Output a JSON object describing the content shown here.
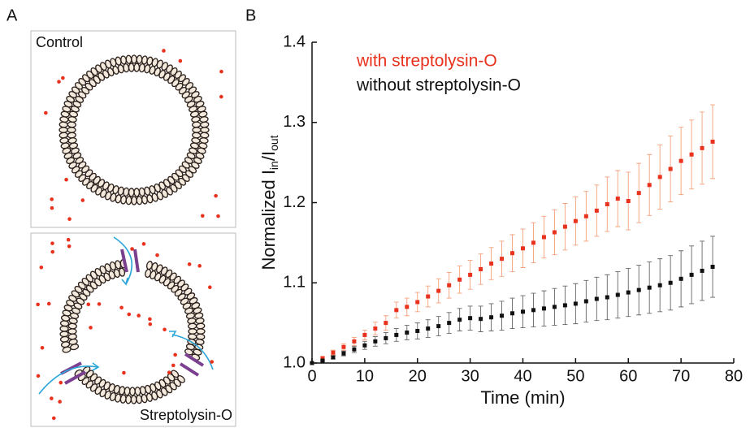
{
  "diagram": {
    "panel_label": "A",
    "top_label": "Control",
    "bottom_label": "Streptolysin-O"
  },
  "chart_data": {
    "type": "errorbar-scatter",
    "panel_label": "B",
    "x_label": "Time (min)",
    "y_label_parts": [
      "Normalized I",
      "in",
      "/I",
      "out"
    ],
    "legend": "upper left",
    "xlim": [
      0,
      80
    ],
    "xticks": [
      0,
      10,
      20,
      30,
      40,
      50,
      60,
      70,
      80
    ],
    "ylim": [
      1.0,
      1.4
    ],
    "yticks": [
      {
        "value": 1.0,
        "label": "1.0"
      },
      1.1,
      1.2,
      1.3,
      1.4
    ],
    "x": [
      0,
      2,
      4,
      6,
      8,
      10,
      12,
      14,
      16,
      18,
      20,
      22,
      24,
      26,
      28,
      30,
      32,
      34,
      36,
      38,
      40,
      42,
      44,
      46,
      48,
      50,
      52,
      54,
      56,
      58,
      60,
      62,
      64,
      66,
      68,
      70,
      72,
      74,
      76
    ],
    "series": [
      {
        "name": "with streptolysin-O",
        "color": "#e8321e",
        "bar_color": "#f5a07a",
        "values": [
          1.0,
          1.006,
          1.013,
          1.02,
          1.027,
          1.035,
          1.043,
          1.05,
          1.066,
          1.07,
          1.076,
          1.083,
          1.09,
          1.097,
          1.104,
          1.11,
          1.117,
          1.124,
          1.13,
          1.137,
          1.143,
          1.15,
          1.157,
          1.163,
          1.17,
          1.177,
          1.183,
          1.19,
          1.198,
          1.205,
          1.202,
          1.212,
          1.222,
          1.232,
          1.242,
          1.252,
          1.26,
          1.268,
          1.276
        ],
        "errors": [
          0.0,
          0.002,
          0.003,
          0.004,
          0.005,
          0.006,
          0.008,
          0.009,
          0.01,
          0.011,
          0.012,
          0.013,
          0.015,
          0.016,
          0.017,
          0.018,
          0.019,
          0.02,
          0.022,
          0.023,
          0.024,
          0.025,
          0.026,
          0.028,
          0.029,
          0.03,
          0.031,
          0.032,
          0.034,
          0.035,
          0.036,
          0.037,
          0.038,
          0.04,
          0.041,
          0.042,
          0.043,
          0.045,
          0.046
        ]
      },
      {
        "name": "without streptolysin-O",
        "color": "#111111",
        "bar_color": "#666666",
        "values": [
          1.0,
          1.003,
          1.007,
          1.012,
          1.017,
          1.022,
          1.027,
          1.031,
          1.035,
          1.038,
          1.04,
          1.043,
          1.046,
          1.05,
          1.054,
          1.056,
          1.055,
          1.057,
          1.059,
          1.062,
          1.064,
          1.066,
          1.068,
          1.07,
          1.072,
          1.074,
          1.077,
          1.08,
          1.082,
          1.085,
          1.088,
          1.091,
          1.094,
          1.097,
          1.1,
          1.105,
          1.11,
          1.115,
          1.12
        ],
        "errors": [
          0.0,
          0.001,
          0.002,
          0.003,
          0.004,
          0.005,
          0.006,
          0.007,
          0.008,
          0.009,
          0.01,
          0.011,
          0.012,
          0.013,
          0.014,
          0.015,
          0.016,
          0.017,
          0.018,
          0.019,
          0.02,
          0.021,
          0.022,
          0.023,
          0.024,
          0.025,
          0.026,
          0.027,
          0.028,
          0.029,
          0.03,
          0.031,
          0.032,
          0.033,
          0.034,
          0.035,
          0.036,
          0.037,
          0.038
        ]
      }
    ]
  }
}
